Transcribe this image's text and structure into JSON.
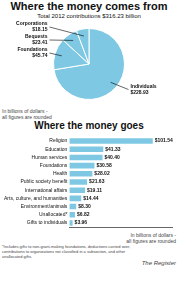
{
  "chart_data": [
    {
      "type": "pie",
      "title": "Where the money comes from",
      "subtitle": "Total 2012 contributions $316.23 billion",
      "categories": [
        "Individuals",
        "Foundations",
        "Bequests",
        "Corporations"
      ],
      "values": [
        228.93,
        45.74,
        23.41,
        18.15
      ],
      "value_labels": [
        "$228.93",
        "$45.74",
        "$23.41",
        "$18.15"
      ],
      "data_labels": true,
      "color": "#7EC8E3",
      "note": "In billions of dollars -\nall figures are rounded"
    },
    {
      "type": "bar",
      "orientation": "horizontal",
      "title": "Where the money goes",
      "categories": [
        "Religion",
        "Education",
        "Human services",
        "Foundations",
        "Health",
        "Public society benefit",
        "International affairs",
        "Arts, culture, and humanities",
        "Environment/animals",
        "Unallocated*",
        "Gifts to individuals"
      ],
      "values": [
        101.54,
        41.33,
        40.4,
        30.58,
        28.02,
        21.63,
        19.11,
        14.44,
        8.3,
        6.82,
        3.96
      ],
      "value_labels": [
        "$101.54",
        "$41.33",
        "$40.40",
        "$30.58",
        "$28.02",
        "$21.63",
        "$19.11",
        "$14.44",
        "$8.30",
        "$6.82",
        "$3.96"
      ],
      "data_labels": true,
      "color": "#7EC8E3",
      "xlim": [
        0,
        125
      ],
      "tick_labels": "y",
      "grid": false,
      "note": "In billions of dollars -\nall figures are rounded",
      "footer": "*Includes gifts to non-grant-making foundations, deductions carried over,\ncontributions to organizations not classified in a subsection, and other\nunallocated gifts.",
      "source": "The Register"
    }
  ]
}
